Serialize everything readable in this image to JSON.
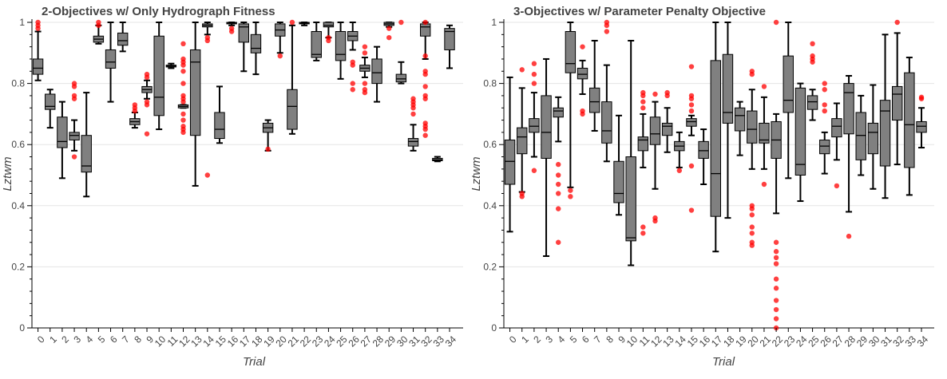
{
  "chart_data": [
    {
      "type": "box",
      "title": "2-Objectives w/ Only Hydrograph Fitness",
      "xlabel": "Trial",
      "ylabel": "Lztwm",
      "ylim": [
        0,
        1
      ],
      "yticks": [
        0,
        0.2,
        0.4,
        0.6,
        0.8,
        1
      ],
      "ytick_labels": [
        "0",
        "0.2",
        "0.4",
        "0.6",
        "0.8",
        "1"
      ],
      "categories": [
        "0",
        "1",
        "2",
        "3",
        "4",
        "5",
        "6",
        "7",
        "8",
        "9",
        "10",
        "11",
        "12",
        "13",
        "14",
        "15",
        "16",
        "17",
        "18",
        "19",
        "20",
        "21",
        "22",
        "23",
        "24",
        "25",
        "26",
        "27",
        "28",
        "29",
        "30",
        "31",
        "32",
        "33",
        "34"
      ],
      "box_color": "#808080",
      "outlier_color": "#ff0000",
      "grid": "horizontal",
      "boxes": [
        {
          "low": 0.81,
          "q1": 0.83,
          "median": 0.85,
          "q3": 0.88,
          "high": 0.97,
          "outliers": [
            0.98,
            0.99,
            1.0
          ]
        },
        {
          "low": 0.655,
          "q1": 0.715,
          "median": 0.725,
          "q3": 0.765,
          "high": 0.78,
          "outliers": []
        },
        {
          "low": 0.49,
          "q1": 0.59,
          "median": 0.61,
          "q3": 0.69,
          "high": 0.74,
          "outliers": []
        },
        {
          "low": 0.58,
          "q1": 0.615,
          "median": 0.63,
          "q3": 0.64,
          "high": 0.68,
          "outliers": [
            0.56,
            0.75,
            0.76,
            0.79,
            0.8
          ]
        },
        {
          "low": 0.43,
          "q1": 0.51,
          "median": 0.53,
          "q3": 0.63,
          "high": 0.77,
          "outliers": []
        },
        {
          "low": 0.93,
          "q1": 0.935,
          "median": 0.945,
          "q3": 0.955,
          "high": 0.99,
          "outliers": [
            0.99,
            1.0
          ]
        },
        {
          "low": 0.74,
          "q1": 0.85,
          "median": 0.87,
          "q3": 0.91,
          "high": 1.0,
          "outliers": []
        },
        {
          "low": 0.905,
          "q1": 0.925,
          "median": 0.94,
          "q3": 0.965,
          "high": 1.0,
          "outliers": []
        },
        {
          "low": 0.655,
          "q1": 0.665,
          "median": 0.675,
          "q3": 0.685,
          "high": 0.705,
          "outliers": [
            0.71,
            0.72,
            0.73
          ]
        },
        {
          "low": 0.75,
          "q1": 0.77,
          "median": 0.78,
          "q3": 0.79,
          "high": 0.81,
          "outliers": [
            0.635,
            0.73,
            0.74,
            0.82,
            0.83
          ]
        },
        {
          "low": 0.65,
          "q1": 0.695,
          "median": 0.755,
          "q3": 0.955,
          "high": 1.0,
          "outliers": []
        },
        {
          "low": 0.85,
          "q1": 0.854,
          "median": 0.857,
          "q3": 0.86,
          "high": 0.865,
          "outliers": []
        },
        {
          "low": 0.72,
          "q1": 0.72,
          "median": 0.725,
          "q3": 0.73,
          "high": 0.73,
          "outliers": [
            0.64,
            0.65,
            0.66,
            0.68,
            0.7,
            0.74,
            0.75,
            0.76,
            0.8,
            0.84,
            0.86,
            0.87,
            0.88,
            0.93
          ]
        },
        {
          "low": 0.465,
          "q1": 0.63,
          "median": 0.87,
          "q3": 0.91,
          "high": 1.0,
          "outliers": []
        },
        {
          "low": 0.96,
          "q1": 0.985,
          "median": 0.99,
          "q3": 0.995,
          "high": 1.0,
          "outliers": [
            0.5,
            0.94,
            0.95
          ]
        },
        {
          "low": 0.605,
          "q1": 0.62,
          "median": 0.65,
          "q3": 0.705,
          "high": 0.79,
          "outliers": []
        },
        {
          "low": 0.99,
          "q1": 0.995,
          "median": 0.998,
          "q3": 1.0,
          "high": 1.0,
          "outliers": [
            0.97,
            0.98
          ]
        },
        {
          "low": 0.84,
          "q1": 0.935,
          "median": 0.985,
          "q3": 0.995,
          "high": 1.0,
          "outliers": []
        },
        {
          "low": 0.83,
          "q1": 0.9,
          "median": 0.915,
          "q3": 0.96,
          "high": 1.0,
          "outliers": []
        },
        {
          "low": 0.58,
          "q1": 0.64,
          "median": 0.655,
          "q3": 0.67,
          "high": 0.68,
          "outliers": [
            0.585
          ]
        },
        {
          "low": 0.9,
          "q1": 0.955,
          "median": 0.975,
          "q3": 0.995,
          "high": 1.0,
          "outliers": [
            0.89
          ]
        },
        {
          "low": 0.635,
          "q1": 0.65,
          "median": 0.725,
          "q3": 0.78,
          "high": 0.99,
          "outliers": [
            1.0
          ]
        },
        {
          "low": 0.99,
          "q1": 0.995,
          "median": 0.997,
          "q3": 1.0,
          "high": 1.0,
          "outliers": []
        },
        {
          "low": 0.875,
          "q1": 0.885,
          "median": 0.895,
          "q3": 0.97,
          "high": 1.0,
          "outliers": []
        },
        {
          "low": 0.95,
          "q1": 0.985,
          "median": 0.99,
          "q3": 1.0,
          "high": 1.0,
          "outliers": [
            0.94,
            0.95
          ]
        },
        {
          "low": 0.815,
          "q1": 0.875,
          "median": 0.895,
          "q3": 0.97,
          "high": 1.0,
          "outliers": []
        },
        {
          "low": 0.91,
          "q1": 0.94,
          "median": 0.955,
          "q3": 0.97,
          "high": 1.0,
          "outliers": [
            0.78,
            0.8,
            0.86,
            0.87
          ]
        },
        {
          "low": 0.82,
          "q1": 0.84,
          "median": 0.85,
          "q3": 0.86,
          "high": 0.885,
          "outliers": [
            0.77,
            0.78,
            0.8,
            0.9,
            0.92
          ]
        },
        {
          "low": 0.74,
          "q1": 0.8,
          "median": 0.835,
          "q3": 0.88,
          "high": 0.92,
          "outliers": []
        },
        {
          "low": 0.985,
          "q1": 0.99,
          "median": 0.995,
          "q3": 1.0,
          "high": 1.0,
          "outliers": [
            0.95,
            0.98
          ]
        },
        {
          "low": 0.8,
          "q1": 0.805,
          "median": 0.815,
          "q3": 0.83,
          "high": 0.87,
          "outliers": [
            1.0
          ]
        },
        {
          "low": 0.58,
          "q1": 0.595,
          "median": 0.61,
          "q3": 0.62,
          "high": 0.665,
          "outliers": [
            0.7,
            0.72,
            0.73,
            0.74,
            0.75
          ]
        },
        {
          "low": 0.88,
          "q1": 0.955,
          "median": 0.985,
          "q3": 0.995,
          "high": 1.0,
          "outliers": [
            0.63,
            0.65,
            0.66,
            0.67,
            0.75,
            0.76,
            0.79,
            0.83,
            0.84,
            0.89,
            1.0
          ]
        },
        {
          "low": 0.545,
          "q1": 0.547,
          "median": 0.55,
          "q3": 0.555,
          "high": 0.56,
          "outliers": []
        },
        {
          "low": 0.85,
          "q1": 0.91,
          "median": 0.97,
          "q3": 0.98,
          "high": 0.99,
          "outliers": []
        }
      ]
    },
    {
      "type": "box",
      "title": "3-Objectives w/ Parameter Penalty Objective",
      "xlabel": "Trial",
      "ylabel": "Lztwm",
      "ylim": [
        0,
        1
      ],
      "yticks": [
        0,
        0.2,
        0.4,
        0.6,
        0.8,
        1
      ],
      "ytick_labels": [
        "0",
        "0.2",
        "0.4",
        "0.6",
        "0.8",
        "1"
      ],
      "categories": [
        "0",
        "1",
        "2",
        "3",
        "4",
        "5",
        "6",
        "7",
        "8",
        "9",
        "10",
        "11",
        "12",
        "13",
        "14",
        "15",
        "16",
        "17",
        "18",
        "19",
        "20",
        "21",
        "22",
        "23",
        "24",
        "25",
        "26",
        "27",
        "28",
        "29",
        "30",
        "31",
        "32",
        "33",
        "34"
      ],
      "box_color": "#808080",
      "outlier_color": "#ff0000",
      "grid": "horizontal",
      "boxes": [
        {
          "low": 0.315,
          "q1": 0.47,
          "median": 0.545,
          "q3": 0.615,
          "high": 0.82,
          "outliers": []
        },
        {
          "low": 0.445,
          "q1": 0.57,
          "median": 0.625,
          "q3": 0.655,
          "high": 0.785,
          "outliers": [
            0.43,
            0.44,
            0.845
          ]
        },
        {
          "low": 0.56,
          "q1": 0.64,
          "median": 0.66,
          "q3": 0.685,
          "high": 0.77,
          "outliers": [
            0.515,
            0.8,
            0.83,
            0.865
          ]
        },
        {
          "low": 0.235,
          "q1": 0.555,
          "median": 0.64,
          "q3": 0.76,
          "high": 0.88,
          "outliers": []
        },
        {
          "low": 0.61,
          "q1": 0.69,
          "median": 0.71,
          "q3": 0.72,
          "high": 0.755,
          "outliers": [
            0.28,
            0.39,
            0.44,
            0.47,
            0.5,
            0.535
          ]
        },
        {
          "low": 0.46,
          "q1": 0.835,
          "median": 0.865,
          "q3": 0.97,
          "high": 1.0,
          "outliers": [
            0.43,
            0.45
          ]
        },
        {
          "low": 0.765,
          "q1": 0.815,
          "median": 0.83,
          "q3": 0.85,
          "high": 0.875,
          "outliers": [
            0.7,
            0.71,
            0.92
          ]
        },
        {
          "low": 0.645,
          "q1": 0.705,
          "median": 0.74,
          "q3": 0.785,
          "high": 0.94,
          "outliers": []
        },
        {
          "low": 0.545,
          "q1": 0.605,
          "median": 0.645,
          "q3": 0.74,
          "high": 0.86,
          "outliers": [
            0.97,
            0.99,
            1.0
          ]
        },
        {
          "low": 0.37,
          "q1": 0.41,
          "median": 0.44,
          "q3": 0.545,
          "high": 0.695,
          "outliers": []
        },
        {
          "low": 0.205,
          "q1": 0.285,
          "median": 0.295,
          "q3": 0.56,
          "high": 0.94,
          "outliers": []
        },
        {
          "low": 0.525,
          "q1": 0.58,
          "median": 0.615,
          "q3": 0.625,
          "high": 0.7,
          "outliers": [
            0.31,
            0.33,
            0.72,
            0.74,
            0.76,
            0.77
          ]
        },
        {
          "low": 0.455,
          "q1": 0.6,
          "median": 0.635,
          "q3": 0.69,
          "high": 0.74,
          "outliers": [
            0.35,
            0.36,
            0.765
          ]
        },
        {
          "low": 0.575,
          "q1": 0.63,
          "median": 0.66,
          "q3": 0.67,
          "high": 0.72,
          "outliers": [
            0.76,
            0.77
          ]
        },
        {
          "low": 0.525,
          "q1": 0.58,
          "median": 0.595,
          "q3": 0.61,
          "high": 0.64,
          "outliers": [
            0.515
          ]
        },
        {
          "low": 0.63,
          "q1": 0.66,
          "median": 0.675,
          "q3": 0.685,
          "high": 0.695,
          "outliers": [
            0.385,
            0.53,
            0.71,
            0.73,
            0.75,
            0.76,
            0.855
          ]
        },
        {
          "low": 0.47,
          "q1": 0.555,
          "median": 0.58,
          "q3": 0.61,
          "high": 0.65,
          "outliers": []
        },
        {
          "low": 0.25,
          "q1": 0.365,
          "median": 0.505,
          "q3": 0.875,
          "high": 1.0,
          "outliers": []
        },
        {
          "low": 0.36,
          "q1": 0.67,
          "median": 0.705,
          "q3": 0.895,
          "high": 1.0,
          "outliers": []
        },
        {
          "low": 0.565,
          "q1": 0.645,
          "median": 0.695,
          "q3": 0.72,
          "high": 0.74,
          "outliers": []
        },
        {
          "low": 0.52,
          "q1": 0.605,
          "median": 0.65,
          "q3": 0.71,
          "high": 0.78,
          "outliers": [
            0.27,
            0.28,
            0.31,
            0.33,
            0.37,
            0.39,
            0.4,
            0.83,
            0.84
          ]
        },
        {
          "low": 0.52,
          "q1": 0.605,
          "median": 0.615,
          "q3": 0.67,
          "high": 0.755,
          "outliers": [
            0.47,
            0.79
          ]
        },
        {
          "low": 0.375,
          "q1": 0.555,
          "median": 0.615,
          "q3": 0.675,
          "high": 0.7,
          "outliers": [
            0.0,
            0.03,
            0.06,
            0.09,
            0.13,
            0.16,
            0.21,
            0.23,
            0.25,
            0.28,
            1.0
          ]
        },
        {
          "low": 0.49,
          "q1": 0.705,
          "median": 0.745,
          "q3": 0.89,
          "high": 1.0,
          "outliers": []
        },
        {
          "low": 0.415,
          "q1": 0.5,
          "median": 0.535,
          "q3": 0.785,
          "high": 0.8,
          "outliers": []
        },
        {
          "low": 0.68,
          "q1": 0.715,
          "median": 0.74,
          "q3": 0.76,
          "high": 0.78,
          "outliers": [
            0.87,
            0.88,
            0.89,
            0.93
          ]
        },
        {
          "low": 0.505,
          "q1": 0.57,
          "median": 0.595,
          "q3": 0.615,
          "high": 0.64,
          "outliers": [
            0.71,
            0.73,
            0.78,
            0.8
          ]
        },
        {
          "low": 0.55,
          "q1": 0.625,
          "median": 0.66,
          "q3": 0.685,
          "high": 0.735,
          "outliers": [
            0.465
          ]
        },
        {
          "low": 0.38,
          "q1": 0.635,
          "median": 0.77,
          "q3": 0.8,
          "high": 0.825,
          "outliers": [
            0.3
          ]
        },
        {
          "low": 0.5,
          "q1": 0.55,
          "median": 0.63,
          "q3": 0.705,
          "high": 0.76,
          "outliers": []
        },
        {
          "low": 0.455,
          "q1": 0.57,
          "median": 0.64,
          "q3": 0.67,
          "high": 0.795,
          "outliers": []
        },
        {
          "low": 0.425,
          "q1": 0.53,
          "median": 0.71,
          "q3": 0.745,
          "high": 0.96,
          "outliers": []
        },
        {
          "low": 0.535,
          "q1": 0.68,
          "median": 0.765,
          "q3": 0.79,
          "high": 0.965,
          "outliers": [
            1.0
          ]
        },
        {
          "low": 0.435,
          "q1": 0.525,
          "median": 0.665,
          "q3": 0.835,
          "high": 0.885,
          "outliers": []
        },
        {
          "low": 0.59,
          "q1": 0.64,
          "median": 0.66,
          "q3": 0.675,
          "high": 0.72,
          "outliers": [
            0.75,
            0.755
          ]
        }
      ]
    }
  ]
}
